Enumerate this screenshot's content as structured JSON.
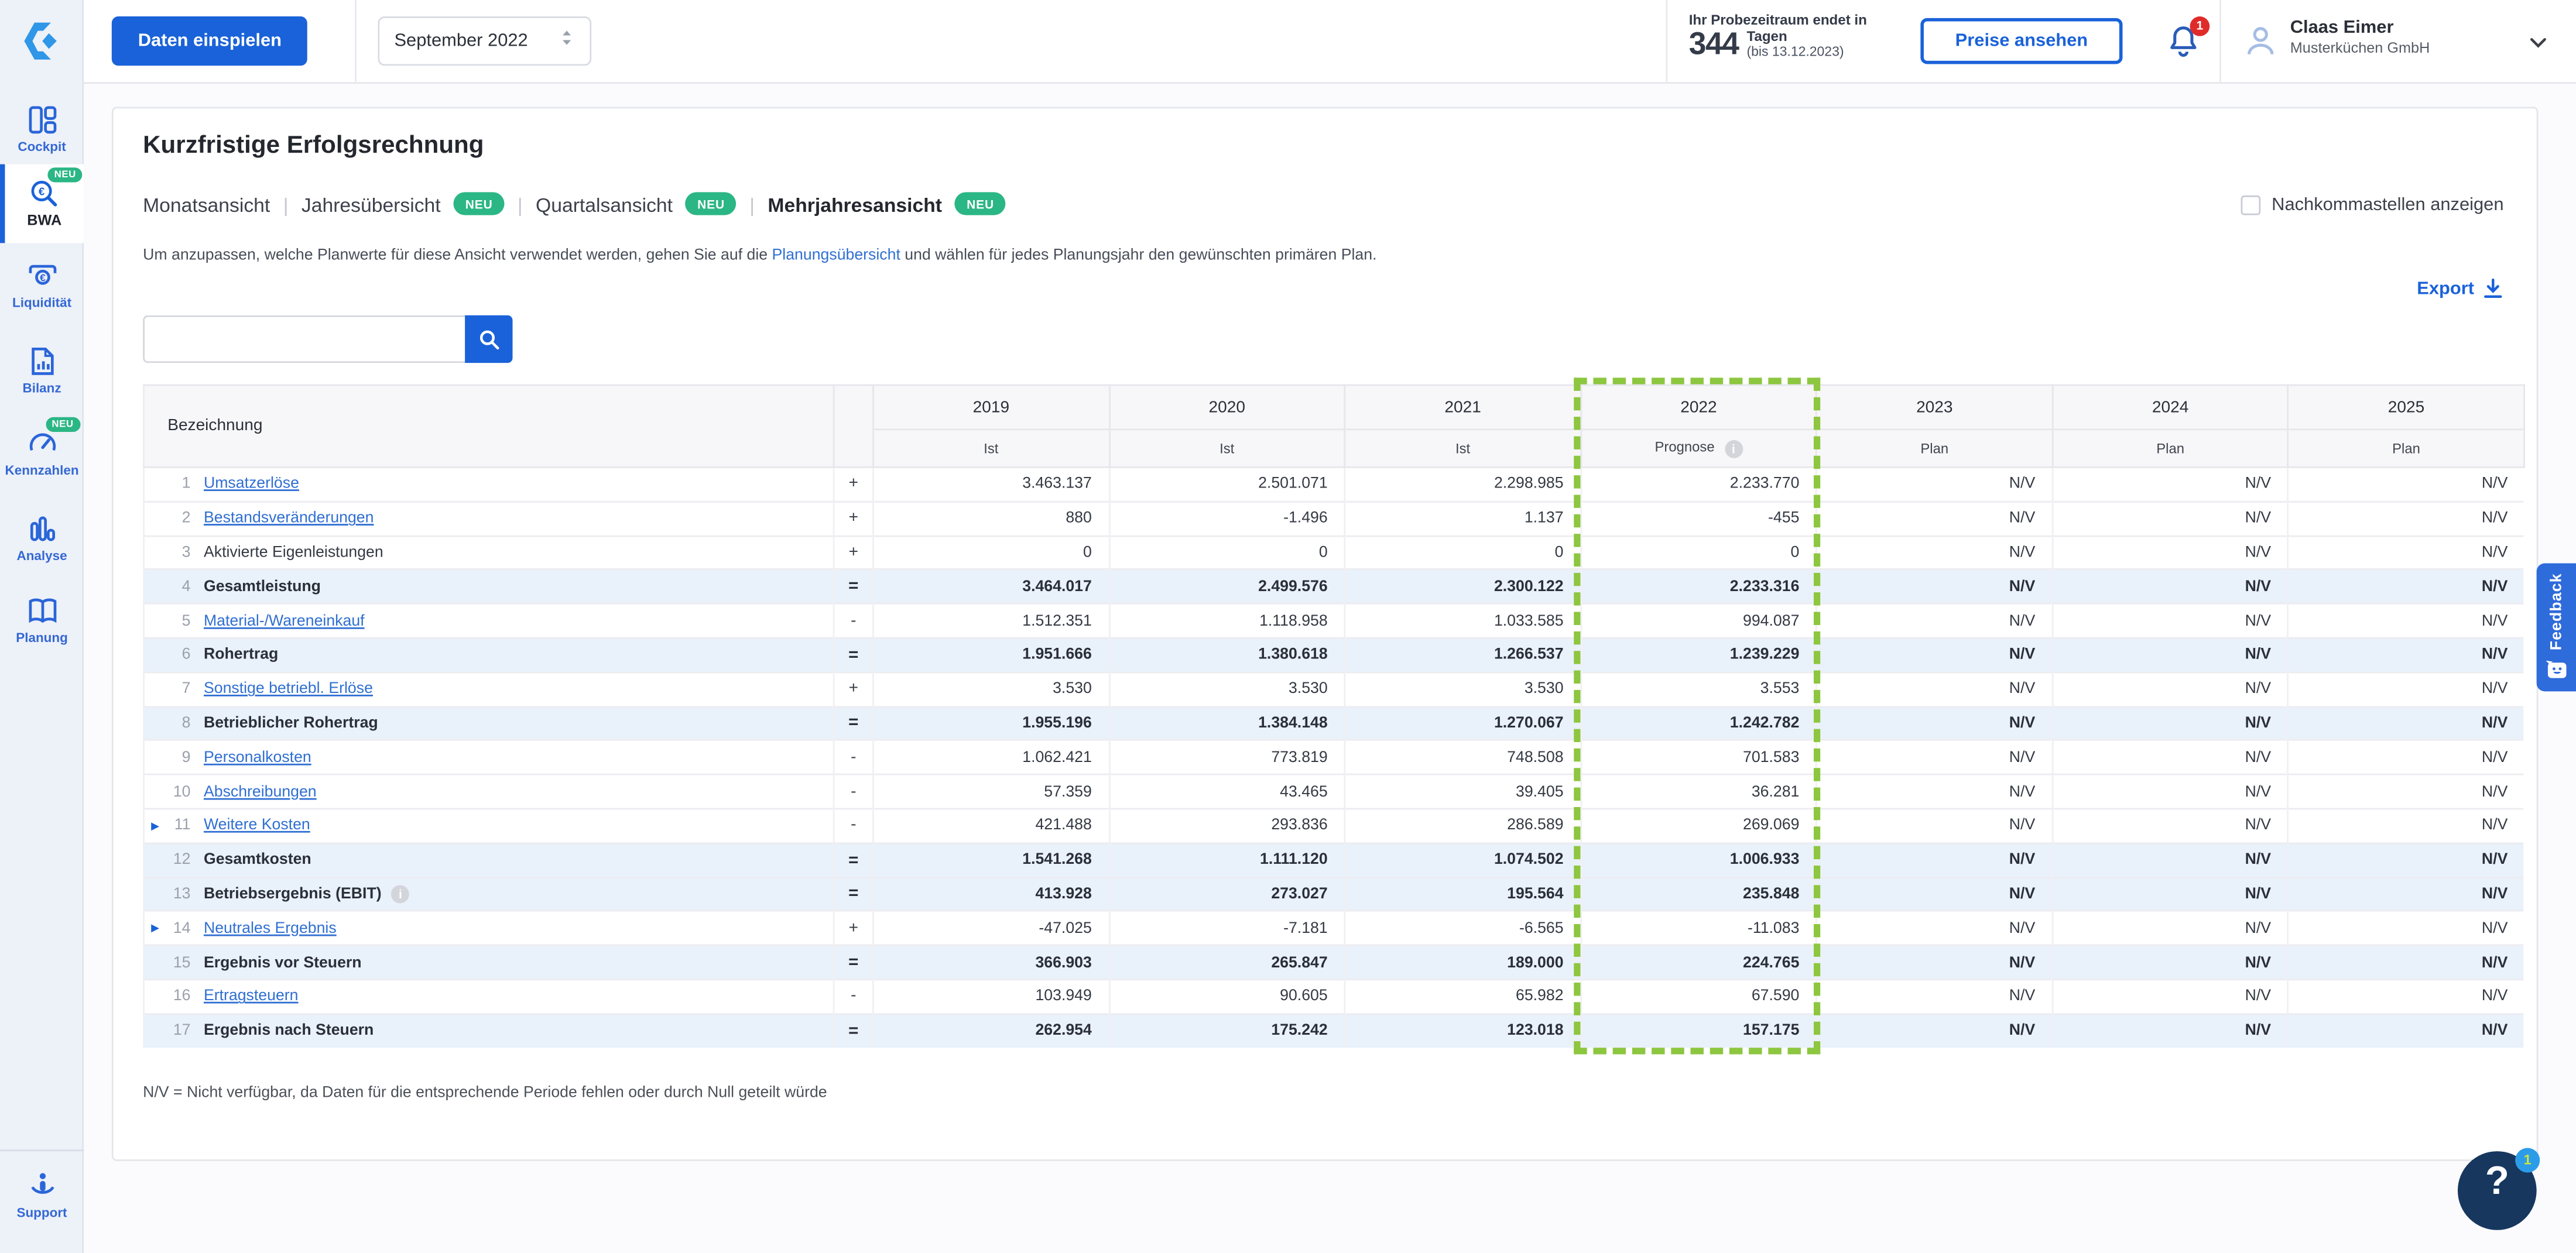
{
  "topbar": {
    "import_button": "Daten einspielen",
    "period_select": "September 2022",
    "trial": {
      "line1": "Ihr Probezeitraum endet in",
      "days": "344",
      "days_unit": "Tagen",
      "until": "(bis 13.12.2023)"
    },
    "pricing_button": "Preise ansehen",
    "notification_count": "1",
    "user": {
      "name": "Claas Eimer",
      "company": "Musterküchen GmbH"
    }
  },
  "sidebar": {
    "items": [
      {
        "label": "Cockpit"
      },
      {
        "label": "BWA",
        "badge": "NEU",
        "active": true
      },
      {
        "label": "Liquidität"
      },
      {
        "label": "Bilanz"
      },
      {
        "label": "Kennzahlen",
        "badge": "NEU"
      },
      {
        "label": "Analyse"
      },
      {
        "label": "Planung"
      }
    ],
    "support_label": "Support"
  },
  "page": {
    "title": "Kurzfristige Erfolgsrechnung",
    "tabs": [
      {
        "label": "Monatsansicht"
      },
      {
        "label": "Jahresübersicht",
        "badge": "NEU"
      },
      {
        "label": "Quartalsansicht",
        "badge": "NEU"
      },
      {
        "label": "Mehrjahresansicht",
        "badge": "NEU",
        "active": true
      }
    ],
    "tab_separator": "|",
    "decimals_checkbox_label": "Nachkommastellen anzeigen",
    "description_before": "Um anzupassen, welche Planwerte für diese Ansicht verwendet werden, gehen Sie auf die ",
    "description_link": "Planungsübersicht",
    "description_after": " und wählen für jedes Planungsjahr den gewünschten primären Plan.",
    "export_label": "Export",
    "footnote": "N/V = Nicht verfügbar, da Daten für die entsprechende Periode fehlen oder durch Null geteilt würde"
  },
  "table": {
    "label_header": "Bezeichnung",
    "columns": [
      {
        "year": "2019",
        "type": "Ist"
      },
      {
        "year": "2020",
        "type": "Ist"
      },
      {
        "year": "2021",
        "type": "Ist"
      },
      {
        "year": "2022",
        "type": "Prognose",
        "info": true,
        "highlight": true
      },
      {
        "year": "2023",
        "type": "Plan"
      },
      {
        "year": "2024",
        "type": "Plan"
      },
      {
        "year": "2025",
        "type": "Plan"
      }
    ],
    "rows": [
      {
        "num": 1,
        "label": "Umsatzerlöse",
        "link": true,
        "op": "+",
        "values": [
          "3.463.137",
          "2.501.071",
          "2.298.985",
          "2.233.770",
          "N/V",
          "N/V",
          "N/V"
        ]
      },
      {
        "num": 2,
        "label": "Bestandsveränderungen",
        "link": true,
        "op": "+",
        "values": [
          "880",
          "-1.496",
          "1.137",
          "-455",
          "N/V",
          "N/V",
          "N/V"
        ]
      },
      {
        "num": 3,
        "label": "Aktivierte Eigenleistungen",
        "link": false,
        "op": "+",
        "values": [
          "0",
          "0",
          "0",
          "0",
          "N/V",
          "N/V",
          "N/V"
        ]
      },
      {
        "num": 4,
        "label": "Gesamtleistung",
        "total": true,
        "op": "=",
        "values": [
          "3.464.017",
          "2.499.576",
          "2.300.122",
          "2.233.316",
          "N/V",
          "N/V",
          "N/V"
        ]
      },
      {
        "num": 5,
        "label": "Material-/Wareneinkauf",
        "link": true,
        "op": "-",
        "values": [
          "1.512.351",
          "1.118.958",
          "1.033.585",
          "994.087",
          "N/V",
          "N/V",
          "N/V"
        ]
      },
      {
        "num": 6,
        "label": "Rohertrag",
        "total": true,
        "op": "=",
        "values": [
          "1.951.666",
          "1.380.618",
          "1.266.537",
          "1.239.229",
          "N/V",
          "N/V",
          "N/V"
        ]
      },
      {
        "num": 7,
        "label": "Sonstige betriebl. Erlöse",
        "link": true,
        "op": "+",
        "values": [
          "3.530",
          "3.530",
          "3.530",
          "3.553",
          "N/V",
          "N/V",
          "N/V"
        ]
      },
      {
        "num": 8,
        "label": "Betrieblicher Rohertrag",
        "total": true,
        "op": "=",
        "values": [
          "1.955.196",
          "1.384.148",
          "1.270.067",
          "1.242.782",
          "N/V",
          "N/V",
          "N/V"
        ]
      },
      {
        "num": 9,
        "label": "Personalkosten",
        "link": true,
        "op": "-",
        "values": [
          "1.062.421",
          "773.819",
          "748.508",
          "701.583",
          "N/V",
          "N/V",
          "N/V"
        ]
      },
      {
        "num": 10,
        "label": "Abschreibungen",
        "link": true,
        "op": "-",
        "values": [
          "57.359",
          "43.465",
          "39.405",
          "36.281",
          "N/V",
          "N/V",
          "N/V"
        ]
      },
      {
        "num": 11,
        "label": "Weitere Kosten",
        "link": true,
        "expand": true,
        "op": "-",
        "values": [
          "421.488",
          "293.836",
          "286.589",
          "269.069",
          "N/V",
          "N/V",
          "N/V"
        ]
      },
      {
        "num": 12,
        "label": "Gesamtkosten",
        "total": true,
        "op": "=",
        "values": [
          "1.541.268",
          "1.111.120",
          "1.074.502",
          "1.006.933",
          "N/V",
          "N/V",
          "N/V"
        ]
      },
      {
        "num": 13,
        "label": "Betriebsergebnis (EBIT)",
        "total": true,
        "info": true,
        "op": "=",
        "values": [
          "413.928",
          "273.027",
          "195.564",
          "235.848",
          "N/V",
          "N/V",
          "N/V"
        ]
      },
      {
        "num": 14,
        "label": "Neutrales Ergebnis",
        "link": true,
        "expand": true,
        "op": "+",
        "values": [
          "-47.025",
          "-7.181",
          "-6.565",
          "-11.083",
          "N/V",
          "N/V",
          "N/V"
        ]
      },
      {
        "num": 15,
        "label": "Ergebnis vor Steuern",
        "total": true,
        "op": "=",
        "values": [
          "366.903",
          "265.847",
          "189.000",
          "224.765",
          "N/V",
          "N/V",
          "N/V"
        ]
      },
      {
        "num": 16,
        "label": "Ertragsteuern",
        "link": true,
        "op": "-",
        "values": [
          "103.949",
          "90.605",
          "65.982",
          "67.590",
          "N/V",
          "N/V",
          "N/V"
        ]
      },
      {
        "num": 17,
        "label": "Ergebnis nach Steuern",
        "total": true,
        "op": "=",
        "values": [
          "262.954",
          "175.242",
          "123.018",
          "157.175",
          "N/V",
          "N/V",
          "N/V"
        ]
      }
    ]
  },
  "feedback_tab": "Feedback",
  "help": {
    "glyph": "?",
    "badge": "1"
  },
  "colors": {
    "accent_blue": "#1a62d9",
    "badge_green": "#2bb685",
    "highlight_green": "#8dc63f",
    "alert_red": "#e02b2b",
    "navy": "#17375e",
    "total_row_bg": "#e9f1fa"
  }
}
